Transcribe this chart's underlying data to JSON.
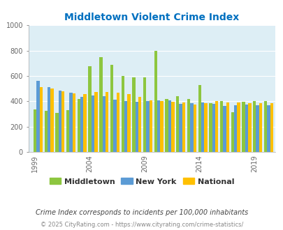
{
  "title": "Middletown Violent Crime Index",
  "subtitle": "Crime Index corresponds to incidents per 100,000 inhabitants",
  "footer": "© 2025 CityRating.com - https://www.cityrating.com/crime-statistics/",
  "ylim": [
    0,
    1000
  ],
  "yticks": [
    0,
    200,
    400,
    600,
    800,
    1000
  ],
  "years": [
    1999,
    2000,
    2001,
    2002,
    2003,
    2004,
    2005,
    2006,
    2007,
    2008,
    2009,
    2010,
    2011,
    2012,
    2013,
    2014,
    2015,
    2016,
    2017,
    2018,
    2019,
    2020
  ],
  "middletown": [
    335,
    325,
    310,
    330,
    420,
    675,
    750,
    690,
    600,
    590,
    590,
    800,
    415,
    440,
    415,
    530,
    385,
    400,
    315,
    395,
    400,
    400
  ],
  "new_york": [
    560,
    510,
    485,
    465,
    435,
    445,
    440,
    410,
    400,
    395,
    400,
    405,
    405,
    380,
    385,
    390,
    380,
    365,
    370,
    375,
    370,
    370
  ],
  "national": [
    510,
    500,
    480,
    460,
    455,
    470,
    475,
    465,
    455,
    435,
    405,
    400,
    395,
    390,
    375,
    385,
    400,
    390,
    390,
    385,
    385,
    385
  ],
  "color_middletown": "#8dc63f",
  "color_new_york": "#5b9bd5",
  "color_national": "#ffc000",
  "background_color": "#ddeef5",
  "title_color": "#0070c0",
  "axis_label_color": "#666666",
  "footer_color": "#888888",
  "subtitle_color": "#444444",
  "bar_width": 0.28,
  "xtick_years": [
    1999,
    2004,
    2009,
    2014,
    2019
  ]
}
